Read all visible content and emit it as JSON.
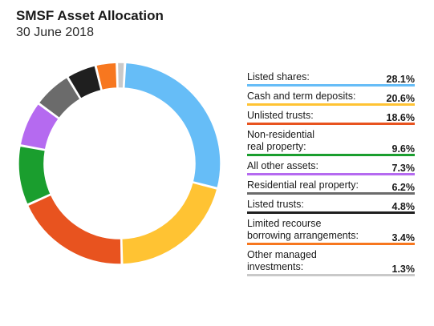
{
  "header": {
    "title": "SMSF Asset Allocation",
    "subtitle": "30 June 2018"
  },
  "chart_data": {
    "type": "pie",
    "donut": true,
    "title": "SMSF Asset Allocation",
    "subtitle": "30 June 2018",
    "legend_position": "right",
    "slices": [
      {
        "label": "Listed shares:",
        "value": 28.1,
        "display": "28.1%",
        "color": "#66BDF7"
      },
      {
        "label": "Cash and term deposits:",
        "value": 20.6,
        "display": "20.6%",
        "color": "#FFC333"
      },
      {
        "label": "Unlisted trusts:",
        "value": 18.6,
        "display": "18.6%",
        "color": "#E8531F"
      },
      {
        "label": "Non-residential\nreal property:",
        "value": 9.6,
        "display": "9.6%",
        "color": "#1A9E2E"
      },
      {
        "label": "All other assets:",
        "value": 7.3,
        "display": "7.3%",
        "color": "#B56AF0"
      },
      {
        "label": "Residential real property:",
        "value": 6.2,
        "display": "6.2%",
        "color": "#6B6B6B"
      },
      {
        "label": "Listed trusts:",
        "value": 4.8,
        "display": "4.8%",
        "color": "#1F1F1F"
      },
      {
        "label": "Limited recourse\nborrowing arrangements:",
        "value": 3.4,
        "display": "3.4%",
        "color": "#F7771F"
      },
      {
        "label": "Other managed\ninvestments:",
        "value": 1.3,
        "display": "1.3%",
        "color": "#C9C9C9"
      }
    ]
  }
}
